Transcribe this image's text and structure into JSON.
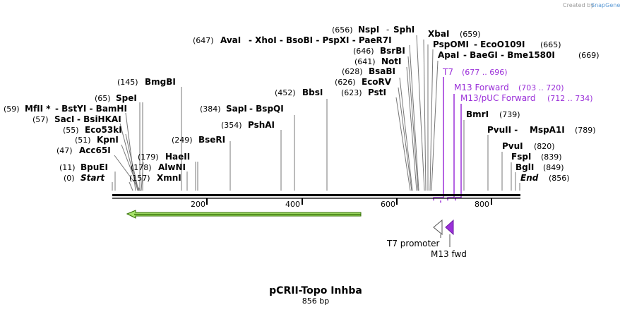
{
  "credit": {
    "text": "Created by",
    "brand": "SnapGene"
  },
  "title": "pCRII-Topo Inhba",
  "length_label": "856 bp",
  "ticks": [
    "200",
    "400",
    "600",
    "800"
  ],
  "sites": [
    {
      "pos": "(656)",
      "name": "NspI",
      "sep": "-",
      "name2": "SphI"
    },
    {
      "pos": "(659)",
      "name": "XbaI"
    },
    {
      "pos": "(647)",
      "name": "AvaI",
      "rest": "- XhoI - BsoBI - PspXI - PaeR7I"
    },
    {
      "pos": "(665)",
      "name": "PspOMI",
      "rest": "- EcoO109I"
    },
    {
      "pos": "(646)",
      "name": "BsrBI"
    },
    {
      "pos": "(669)",
      "name": "ApaI",
      "rest": "- BaeGI - Bme1580I"
    },
    {
      "pos": "(641)",
      "name": "NotI"
    },
    {
      "pos": "(628)",
      "name": "BsaBI"
    },
    {
      "pos": "(626)",
      "name": "EcoRV"
    },
    {
      "pos": "(623)",
      "name": "PstI"
    },
    {
      "pos": "(452)",
      "name": "BbsI"
    },
    {
      "pos": "(145)",
      "name": "BmgBI"
    },
    {
      "pos": "(65)",
      "name": "SpeI"
    },
    {
      "pos": "(59)",
      "name": "MfII *",
      "rest": "- BstYI - BamHI"
    },
    {
      "pos": "(384)",
      "name": "SapI",
      "rest": "- BspQI"
    },
    {
      "pos": "(57)",
      "name": "SacI",
      "rest": "- BsiHKAI"
    },
    {
      "pos": "(354)",
      "name": "PshAI"
    },
    {
      "pos": "(55)",
      "name": "Eco53kI"
    },
    {
      "pos": "(51)",
      "name": "KpnI"
    },
    {
      "pos": "(249)",
      "name": "BseRI"
    },
    {
      "pos": "(47)",
      "name": "Acc65I"
    },
    {
      "pos": "(179)",
      "name": "HaeII"
    },
    {
      "pos": "(11)",
      "name": "BpuEI"
    },
    {
      "pos": "(178)",
      "name": "AlwNI"
    },
    {
      "pos": "(0)",
      "name": "Start"
    },
    {
      "pos": "(157)",
      "name": "XmnI"
    },
    {
      "pos": "(739)",
      "name": "BmrI"
    },
    {
      "pos": "(789)",
      "name": "MspA1I",
      "pre": "PvuII -"
    },
    {
      "pos": "(820)",
      "name": "PvuI"
    },
    {
      "pos": "(839)",
      "name": "FspI"
    },
    {
      "pos": "(849)",
      "name": "BglI"
    },
    {
      "pos": "(856)",
      "name": "End"
    }
  ],
  "primers": [
    {
      "name": "T7",
      "range": "(677 .. 696)"
    },
    {
      "name": "M13 Forward",
      "range": "(703 .. 720)"
    },
    {
      "name": "M13/pUC Forward",
      "range": "(712 .. 734)"
    }
  ],
  "features": [
    {
      "name": "T7 promoter"
    },
    {
      "name": "M13 fwd"
    }
  ],
  "colors": {
    "orf": "#a7e36b",
    "orf_outline": "#2f6b00",
    "primer": "#9b30d9",
    "m13_fill": "#9b30d9",
    "t7_fill": "#ffffff"
  }
}
